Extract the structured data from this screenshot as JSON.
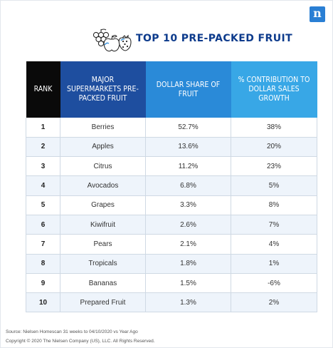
{
  "title": "TOP 10 PRE-PACKED FRUIT",
  "brand": {
    "logo_letter": "n",
    "accent": "#2a7fd4",
    "title_color": "#0d3b8c"
  },
  "icons": {
    "header": "fruit-basket-icon",
    "logo": "nielsen-logo-icon"
  },
  "table": {
    "headers": [
      {
        "key": "rank",
        "label": "RANK",
        "color": "#0a0a0a"
      },
      {
        "key": "fruit",
        "label": "MAJOR SUPERMARKETS PRE-PACKED FRUIT",
        "color": "#1e4e9f"
      },
      {
        "key": "share",
        "label": "DOLLAR SHARE OF FRUIT",
        "color": "#2a8ad8"
      },
      {
        "key": "growth",
        "label": "% CONTRIBUTION TO DOLLAR SALES GROWTH",
        "color": "#38a7e6"
      }
    ],
    "rows": [
      {
        "rank": "1",
        "fruit": "Berries",
        "share": "52.7%",
        "growth": "38%"
      },
      {
        "rank": "2",
        "fruit": "Apples",
        "share": "13.6%",
        "growth": "20%"
      },
      {
        "rank": "3",
        "fruit": "Citrus",
        "share": "11.2%",
        "growth": "23%"
      },
      {
        "rank": "4",
        "fruit": "Avocados",
        "share": "6.8%",
        "growth": "5%"
      },
      {
        "rank": "5",
        "fruit": "Grapes",
        "share": "3.3%",
        "growth": "8%"
      },
      {
        "rank": "6",
        "fruit": "Kiwifruit",
        "share": "2.6%",
        "growth": "7%"
      },
      {
        "rank": "7",
        "fruit": "Pears",
        "share": "2.1%",
        "growth": "4%"
      },
      {
        "rank": "8",
        "fruit": "Tropicals",
        "share": "1.8%",
        "growth": "1%"
      },
      {
        "rank": "9",
        "fruit": "Bananas",
        "share": "1.5%",
        "growth": "-6%"
      },
      {
        "rank": "10",
        "fruit": "Prepared Fruit",
        "share": "1.3%",
        "growth": "2%"
      }
    ]
  },
  "footer": {
    "source": "Source: Nielsen Homescan 31 weeks to 04/10/2020 vs Year Ago",
    "copyright": "Copyright © 2020 The Nielsen Company (US), LLC. All Rights Reserved."
  }
}
